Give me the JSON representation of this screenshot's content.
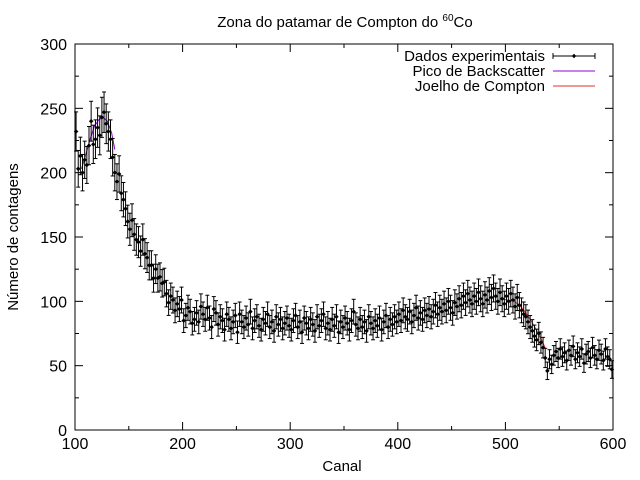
{
  "chart_data": {
    "type": "scatter",
    "title": "Zona do patamar de Compton do ",
    "title_superscript": "60",
    "title_suffix": "Co",
    "xlabel": "Canal",
    "ylabel": "Número de contagens",
    "xlim": [
      100,
      600
    ],
    "ylim": [
      0,
      300
    ],
    "x_ticks": [
      100,
      200,
      300,
      400,
      500,
      600
    ],
    "y_ticks": [
      0,
      50,
      100,
      150,
      200,
      250,
      300
    ],
    "grid": false,
    "legend_position": "top-right",
    "series": [
      {
        "name": "Dados experimentais",
        "kind": "points-with-errorbars",
        "color": "#000000",
        "data": [
          [
            101,
            232
          ],
          [
            103,
            203
          ],
          [
            105,
            213
          ],
          [
            107,
            200
          ],
          [
            109,
            210
          ],
          [
            111,
            206
          ],
          [
            113,
            221
          ],
          [
            115,
            240
          ],
          [
            117,
            222
          ],
          [
            119,
            226
          ],
          [
            121,
            235
          ],
          [
            123,
            229
          ],
          [
            125,
            243
          ],
          [
            127,
            247
          ],
          [
            129,
            238
          ],
          [
            131,
            232
          ],
          [
            133,
            226
          ],
          [
            135,
            212
          ],
          [
            137,
            200
          ],
          [
            139,
            193
          ],
          [
            141,
            199
          ],
          [
            143,
            184
          ],
          [
            145,
            179
          ],
          [
            147,
            172
          ],
          [
            149,
            162
          ],
          [
            151,
            156
          ],
          [
            153,
            163
          ],
          [
            155,
            152
          ],
          [
            157,
            148
          ],
          [
            159,
            146
          ],
          [
            161,
            139
          ],
          [
            163,
            148
          ],
          [
            165,
            137
          ],
          [
            167,
            134
          ],
          [
            169,
            128
          ],
          [
            171,
            128
          ],
          [
            173,
            118
          ],
          [
            175,
            125
          ],
          [
            177,
            118
          ],
          [
            179,
            119
          ],
          [
            181,
            114
          ],
          [
            183,
            115
          ],
          [
            185,
            106
          ],
          [
            187,
            99
          ],
          [
            189,
            104
          ],
          [
            191,
            101
          ],
          [
            193,
            93
          ],
          [
            195,
            98
          ],
          [
            197,
            94
          ],
          [
            199,
            101
          ],
          [
            201,
            85
          ],
          [
            203,
            89
          ],
          [
            205,
            95
          ],
          [
            207,
            92
          ],
          [
            209,
            83
          ],
          [
            211,
            86
          ],
          [
            213,
            91
          ],
          [
            215,
            84
          ],
          [
            217,
            96
          ],
          [
            219,
            90
          ],
          [
            221,
            86
          ],
          [
            223,
            95
          ],
          [
            225,
            87
          ],
          [
            227,
            80
          ],
          [
            229,
            94
          ],
          [
            231,
            91
          ],
          [
            233,
            82
          ],
          [
            235,
            88
          ],
          [
            237,
            85
          ],
          [
            239,
            78
          ],
          [
            241,
            90
          ],
          [
            243,
            86
          ],
          [
            245,
            79
          ],
          [
            247,
            84
          ],
          [
            249,
            89
          ],
          [
            251,
            76
          ],
          [
            253,
            90
          ],
          [
            255,
            84
          ],
          [
            257,
            80
          ],
          [
            259,
            87
          ],
          [
            261,
            82
          ],
          [
            263,
            92
          ],
          [
            265,
            79
          ],
          [
            267,
            85
          ],
          [
            269,
            88
          ],
          [
            271,
            81
          ],
          [
            273,
            78
          ],
          [
            275,
            86
          ],
          [
            277,
            83
          ],
          [
            279,
            90
          ],
          [
            281,
            80
          ],
          [
            283,
            84
          ],
          [
            285,
            77
          ],
          [
            287,
            88
          ],
          [
            289,
            82
          ],
          [
            291,
            86
          ],
          [
            293,
            79
          ],
          [
            295,
            83
          ],
          [
            297,
            87
          ],
          [
            299,
            81
          ],
          [
            301,
            78
          ],
          [
            303,
            85
          ],
          [
            305,
            89
          ],
          [
            307,
            80
          ],
          [
            309,
            84
          ],
          [
            311,
            76
          ],
          [
            313,
            87
          ],
          [
            315,
            83
          ],
          [
            317,
            79
          ],
          [
            319,
            86
          ],
          [
            321,
            82
          ],
          [
            323,
            77
          ],
          [
            325,
            88
          ],
          [
            327,
            81
          ],
          [
            329,
            85
          ],
          [
            331,
            90
          ],
          [
            333,
            79
          ],
          [
            335,
            83
          ],
          [
            337,
            78
          ],
          [
            339,
            86
          ],
          [
            341,
            81
          ],
          [
            343,
            88
          ],
          [
            345,
            76
          ],
          [
            347,
            84
          ],
          [
            349,
            80
          ],
          [
            351,
            87
          ],
          [
            353,
            83
          ],
          [
            355,
            78
          ],
          [
            357,
            85
          ],
          [
            359,
            92
          ],
          [
            361,
            82
          ],
          [
            363,
            79
          ],
          [
            365,
            86
          ],
          [
            367,
            80
          ],
          [
            369,
            84
          ],
          [
            371,
            77
          ],
          [
            373,
            88
          ],
          [
            375,
            83
          ],
          [
            377,
            79
          ],
          [
            379,
            85
          ],
          [
            381,
            81
          ],
          [
            383,
            87
          ],
          [
            385,
            78
          ],
          [
            387,
            84
          ],
          [
            389,
            89
          ],
          [
            391,
            80
          ],
          [
            393,
            86
          ],
          [
            395,
            82
          ],
          [
            397,
            88
          ],
          [
            399,
            84
          ],
          [
            401,
            90
          ],
          [
            403,
            85
          ],
          [
            405,
            93
          ],
          [
            407,
            88
          ],
          [
            409,
            86
          ],
          [
            411,
            92
          ],
          [
            413,
            84
          ],
          [
            415,
            89
          ],
          [
            417,
            95
          ],
          [
            419,
            87
          ],
          [
            421,
            91
          ],
          [
            423,
            86
          ],
          [
            425,
            93
          ],
          [
            427,
            89
          ],
          [
            429,
            94
          ],
          [
            431,
            88
          ],
          [
            433,
            92
          ],
          [
            435,
            97
          ],
          [
            437,
            90
          ],
          [
            439,
            95
          ],
          [
            441,
            92
          ],
          [
            443,
            98
          ],
          [
            445,
            93
          ],
          [
            447,
            100
          ],
          [
            449,
            95
          ],
          [
            451,
            91
          ],
          [
            453,
            99
          ],
          [
            455,
            96
          ],
          [
            457,
            102
          ],
          [
            459,
            97
          ],
          [
            461,
            104
          ],
          [
            463,
            99
          ],
          [
            465,
            106
          ],
          [
            467,
            101
          ],
          [
            469,
            98
          ],
          [
            471,
            104
          ],
          [
            473,
            100
          ],
          [
            475,
            107
          ],
          [
            477,
            102
          ],
          [
            479,
            98
          ],
          [
            481,
            105
          ],
          [
            483,
            101
          ],
          [
            485,
            108
          ],
          [
            487,
            103
          ],
          [
            489,
            110
          ],
          [
            491,
            104
          ],
          [
            493,
            100
          ],
          [
            495,
            107
          ],
          [
            497,
            102
          ],
          [
            499,
            98
          ],
          [
            501,
            104
          ],
          [
            503,
            100
          ],
          [
            505,
            106
          ],
          [
            507,
            101
          ],
          [
            509,
            96
          ],
          [
            511,
            103
          ],
          [
            513,
            97
          ],
          [
            515,
            93
          ],
          [
            517,
            90
          ],
          [
            519,
            88
          ],
          [
            521,
            84
          ],
          [
            523,
            80
          ],
          [
            525,
            77
          ],
          [
            527,
            73
          ],
          [
            529,
            70
          ],
          [
            531,
            75
          ],
          [
            533,
            68
          ],
          [
            535,
            64
          ],
          [
            537,
            56
          ],
          [
            539,
            46
          ],
          [
            541,
            55
          ],
          [
            543,
            51
          ],
          [
            545,
            58
          ],
          [
            547,
            61
          ],
          [
            549,
            56
          ],
          [
            551,
            63
          ],
          [
            553,
            57
          ],
          [
            555,
            60
          ],
          [
            557,
            54
          ],
          [
            559,
            62
          ],
          [
            561,
            58
          ],
          [
            563,
            65
          ],
          [
            565,
            55
          ],
          [
            567,
            60
          ],
          [
            569,
            57
          ],
          [
            571,
            63
          ],
          [
            573,
            52
          ],
          [
            575,
            59
          ],
          [
            577,
            61
          ],
          [
            579,
            56
          ],
          [
            581,
            64
          ],
          [
            583,
            58
          ],
          [
            585,
            55
          ],
          [
            587,
            62
          ],
          [
            589,
            59
          ],
          [
            591,
            54
          ],
          [
            593,
            63
          ],
          [
            595,
            57
          ],
          [
            597,
            55
          ],
          [
            599,
            47
          ]
        ]
      },
      {
        "name": "Pico de Backscatter",
        "kind": "line",
        "color": "#9400D3",
        "data": [
          [
            106,
            203
          ],
          [
            110,
            214
          ],
          [
            114,
            226
          ],
          [
            118,
            236
          ],
          [
            122,
            241
          ],
          [
            126,
            243
          ],
          [
            130,
            240
          ],
          [
            134,
            231
          ],
          [
            137,
            218
          ]
        ]
      },
      {
        "name": "Joelho de Compton",
        "kind": "line",
        "color": "#E03030",
        "data": [
          [
            496,
            102
          ],
          [
            502,
            101
          ],
          [
            508,
            100
          ],
          [
            513,
            97
          ],
          [
            518,
            92
          ],
          [
            523,
            86
          ],
          [
            528,
            79
          ],
          [
            533,
            71
          ],
          [
            537,
            64
          ]
        ]
      }
    ]
  }
}
